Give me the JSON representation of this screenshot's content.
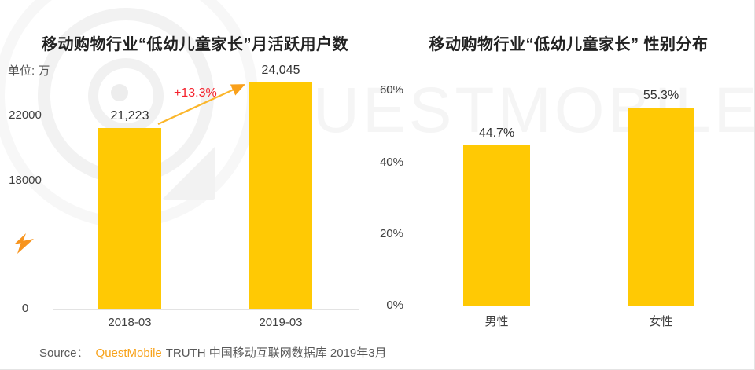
{
  "watermark": {
    "text": "QUESTMOBILE"
  },
  "icons": {
    "lightning": "lightning-bolt",
    "arrow": "growth-arrow-up-right"
  },
  "colors": {
    "bar_yellow": "#FFC904",
    "arrow_yellow": "#FBB62B",
    "arrowhead_orange": "#F9A01B",
    "growth_red": "#F5222D",
    "brand_orange": "#F7A21A",
    "title_dark": "#222222",
    "axis_text": "#404040",
    "watermark_gray": "#F5F5F5"
  },
  "source": {
    "prefix": "Source：",
    "brand": "QuestMobile",
    "suffix": "TRUTH 中国移动互联网数据库 2019年3月"
  },
  "chart_data": [
    {
      "type": "bar",
      "title": "移动购物行业“低幼儿童家长”月活跃用户数",
      "unit_label": "单位: 万",
      "categories": [
        "2018-03",
        "2019-03"
      ],
      "values": [
        21223,
        24045
      ],
      "value_labels": [
        "21,223",
        "24,045"
      ],
      "growth_annotation": "+13.3%",
      "yticks": [
        {
          "label": "22000",
          "value": 22000
        },
        {
          "label": "18000",
          "value": 18000
        },
        {
          "label": "0",
          "value": 0
        }
      ],
      "axis_note": "truncated y-axis, gridlines off, no legend"
    },
    {
      "type": "bar",
      "title": "移动购物行业“低幼儿童家长” 性别分布",
      "categories": [
        "男性",
        "女性"
      ],
      "values": [
        44.7,
        55.3
      ],
      "value_labels": [
        "44.7%",
        "55.3%"
      ],
      "yticks": [
        {
          "label": "60%",
          "value": 60
        },
        {
          "label": "40%",
          "value": 40
        },
        {
          "label": "20%",
          "value": 20
        },
        {
          "label": "0%",
          "value": 0
        }
      ],
      "ylim": [
        0,
        60
      ],
      "axis_note": "gridlines off, no legend"
    }
  ]
}
